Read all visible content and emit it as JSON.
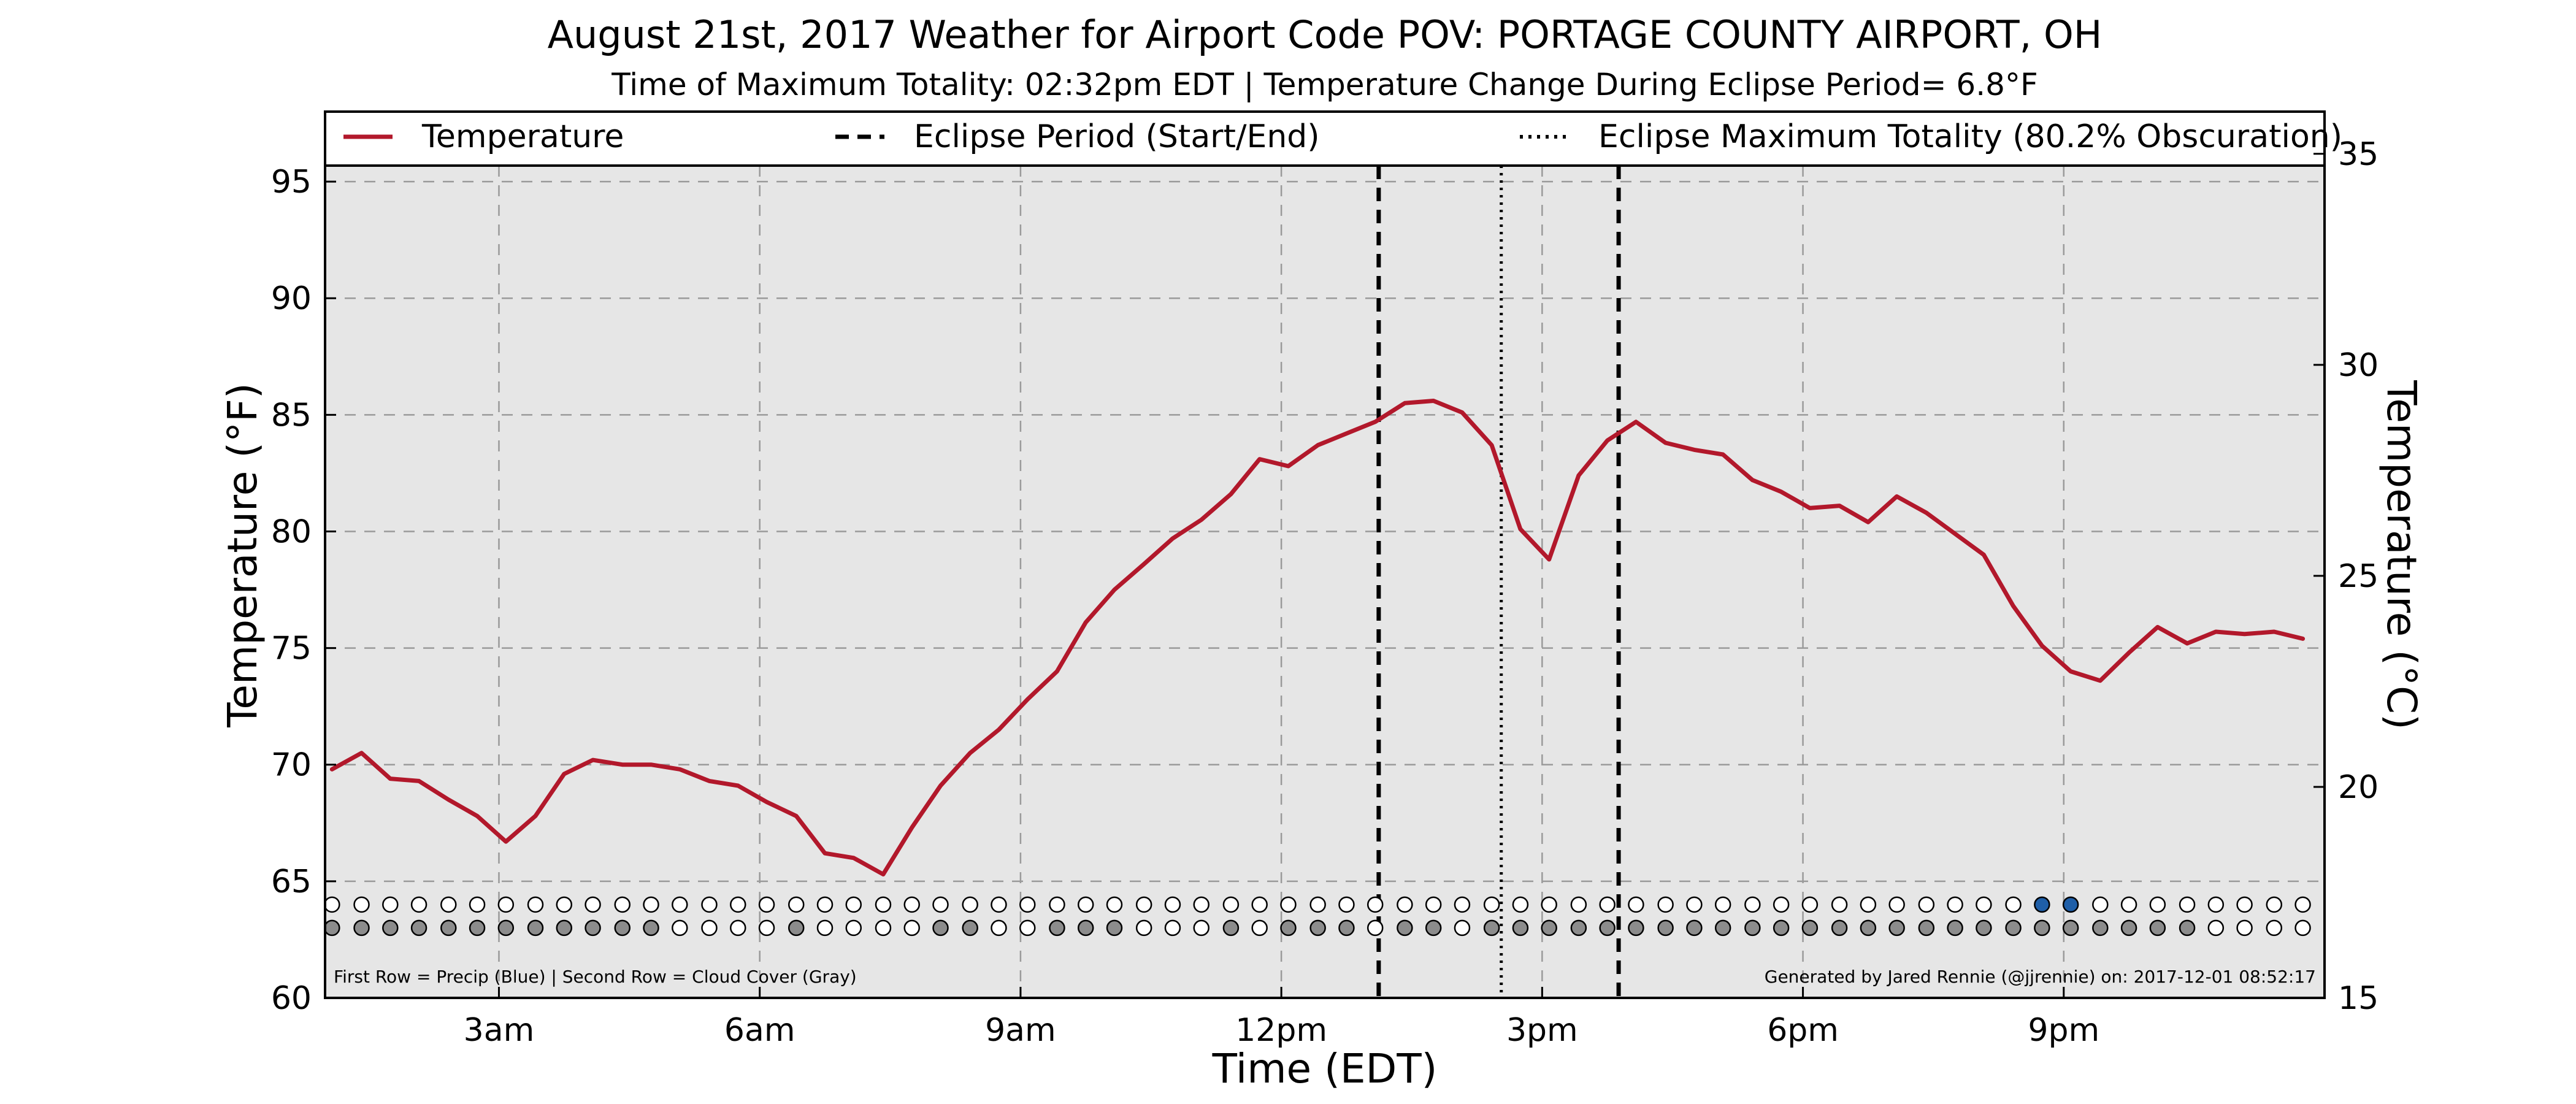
{
  "chart_data": {
    "type": "line",
    "title": "August 21st, 2017 Weather for Airport Code POV: PORTAGE COUNTY AIRPORT, OH",
    "subtitle": "Time of Maximum Totality: 02:32pm EDT | Temperature Change During Eclipse Period= 6.8°F",
    "xlabel": "Time (EDT)",
    "ylabel": "Temperature (°F)",
    "ylabel_right": "Temperature (°C)",
    "xlim": [
      1.0,
      24.0
    ],
    "ylim": [
      60,
      98
    ],
    "ylim_right": [
      15,
      36
    ],
    "x_ticks": [
      {
        "x": 3,
        "label": "3am"
      },
      {
        "x": 6,
        "label": "6am"
      },
      {
        "x": 9,
        "label": "9am"
      },
      {
        "x": 12,
        "label": "12pm"
      },
      {
        "x": 15,
        "label": "3pm"
      },
      {
        "x": 18,
        "label": "6pm"
      },
      {
        "x": 21,
        "label": "9pm"
      }
    ],
    "y_ticks": [
      60,
      65,
      70,
      75,
      80,
      85,
      90,
      95
    ],
    "y_ticks_right": [
      15,
      20,
      25,
      30,
      35
    ],
    "grid": true,
    "legend": {
      "placement": "top",
      "entries": [
        {
          "label": "Temperature",
          "style": "solid"
        },
        {
          "label": "Eclipse Period (Start/End)",
          "style": "dashed"
        },
        {
          "label": "Eclipse Maximum Totality (80.2% Obscuration)",
          "style": "dotted"
        }
      ]
    },
    "series": [
      {
        "name": "Temperature",
        "color": "#b2182b",
        "x": [
          1.08,
          1.42,
          1.75,
          2.08,
          2.42,
          2.75,
          3.08,
          3.42,
          3.75,
          4.08,
          4.42,
          4.75,
          5.08,
          5.42,
          5.75,
          6.08,
          6.42,
          6.75,
          7.08,
          7.42,
          7.75,
          8.08,
          8.42,
          8.75,
          9.08,
          9.42,
          9.75,
          10.08,
          10.42,
          10.75,
          11.08,
          11.42,
          11.75,
          12.08,
          12.42,
          12.75,
          13.08,
          13.42,
          13.75,
          14.08,
          14.42,
          14.75,
          15.08,
          15.42,
          15.75,
          16.08,
          16.42,
          16.75,
          17.08,
          17.42,
          17.75,
          18.08,
          18.42,
          18.75,
          19.08,
          19.42,
          19.75,
          20.08,
          20.42,
          20.75,
          21.08,
          21.42,
          21.75,
          22.08,
          22.42,
          22.75,
          23.08,
          23.42,
          23.75
        ],
        "values": [
          69.8,
          70.5,
          69.4,
          69.3,
          68.5,
          67.8,
          66.7,
          67.8,
          69.6,
          70.2,
          70.0,
          70.0,
          69.8,
          69.3,
          69.1,
          68.4,
          67.8,
          66.2,
          66.0,
          65.3,
          67.3,
          69.1,
          70.5,
          71.5,
          72.8,
          74.0,
          76.1,
          77.5,
          78.6,
          79.7,
          80.5,
          81.6,
          83.1,
          82.8,
          83.7,
          84.2,
          84.7,
          85.5,
          85.6,
          85.1,
          83.7,
          80.1,
          78.8,
          82.4,
          83.9,
          84.7,
          83.8,
          83.5,
          83.3,
          82.2,
          81.7,
          81.0,
          81.1,
          80.4,
          81.5,
          80.8,
          79.9,
          79.0,
          76.8,
          75.1,
          74.0,
          73.6,
          74.8,
          75.9,
          75.2,
          75.7,
          75.6,
          75.7,
          75.4
        ]
      }
    ],
    "eclipse_start_x": 13.12,
    "eclipse_end_x": 15.88,
    "eclipse_max_x": 14.53,
    "precip_row_y": 64.0,
    "cloud_row_y": 63.0,
    "precip_flags": [
      0,
      0,
      0,
      0,
      0,
      0,
      0,
      0,
      0,
      0,
      0,
      0,
      0,
      0,
      0,
      0,
      0,
      0,
      0,
      0,
      0,
      0,
      0,
      0,
      0,
      0,
      0,
      0,
      0,
      0,
      0,
      0,
      0,
      0,
      0,
      0,
      0,
      0,
      0,
      0,
      0,
      0,
      0,
      0,
      0,
      0,
      0,
      0,
      0,
      0,
      0,
      0,
      0,
      0,
      0,
      0,
      0,
      0,
      0,
      1,
      1,
      0,
      0,
      0,
      0,
      0,
      0,
      0,
      0
    ],
    "cloud_flags": [
      1,
      1,
      1,
      1,
      1,
      1,
      1,
      1,
      1,
      1,
      1,
      1,
      0,
      0,
      0,
      0,
      1,
      0,
      0,
      0,
      0,
      1,
      1,
      0,
      0,
      1,
      1,
      1,
      0,
      0,
      0,
      1,
      0,
      1,
      1,
      1,
      0,
      1,
      1,
      0,
      1,
      1,
      1,
      1,
      1,
      1,
      1,
      1,
      1,
      1,
      1,
      1,
      1,
      1,
      1,
      1,
      1,
      1,
      1,
      1,
      1,
      1,
      1,
      1,
      1,
      0,
      0,
      0,
      0
    ],
    "colors": {
      "precip": "#1f5fa8",
      "cloud": "#8c8c8c",
      "empty": "#ffffff",
      "plot_bg": "#e6e6e6",
      "eclipse_lines": "#000000"
    }
  },
  "footer": {
    "left": "First Row = Precip (Blue) | Second Row = Cloud Cover (Gray)",
    "right": "Generated by Jared Rennie (@jjrennie) on: 2017-12-01 08:52:17"
  }
}
